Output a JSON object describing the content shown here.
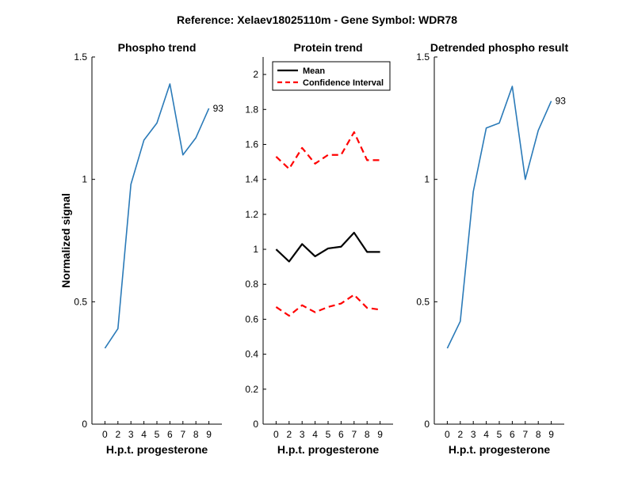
{
  "figure_title": "Reference:  Xelaev18025110m - Gene Symbol:  WDR78",
  "colors": {
    "phospho_line": "#2a7ab8",
    "mean_line": "#000000",
    "ci_line": "#ff0000",
    "axis": "#000000"
  },
  "chart_data": [
    {
      "type": "line",
      "title": "Phospho trend",
      "xlabel": "H.p.t. progesterone",
      "ylabel": "Normalized signal",
      "categories": [
        "0",
        "2",
        "3",
        "4",
        "5",
        "6",
        "7",
        "8",
        "9"
      ],
      "ylim": [
        0,
        1.5
      ],
      "yticks": [
        "0",
        "0.5",
        "1",
        "1.5"
      ],
      "grid": false,
      "series": [
        {
          "values": [
            0.31,
            0.39,
            0.98,
            1.16,
            1.23,
            1.39,
            1.1,
            1.17,
            1.29
          ],
          "end_label": "93"
        }
      ]
    },
    {
      "type": "line",
      "title": "Protein trend",
      "xlabel": "H.p.t. progesterone",
      "categories": [
        "0",
        "2",
        "3",
        "4",
        "5",
        "6",
        "7",
        "8",
        "9"
      ],
      "ylim": [
        0,
        2.1
      ],
      "yticks": [
        "0",
        "0.2",
        "0.4",
        "0.6",
        "0.8",
        "1",
        "1.2",
        "1.4",
        "1.6",
        "1.8",
        "2"
      ],
      "grid": false,
      "legend": {
        "placement": "top-left",
        "entries": [
          "Mean",
          "Confidence Interval"
        ]
      },
      "series": [
        {
          "name": "Mean",
          "style": "solid",
          "values": [
            1.0,
            0.93,
            1.03,
            0.96,
            1.005,
            1.015,
            1.095,
            0.985,
            0.985
          ]
        },
        {
          "name": "Confidence Interval",
          "style": "dashed",
          "values": [
            1.53,
            1.46,
            1.58,
            1.49,
            1.54,
            1.54,
            1.67,
            1.51,
            1.51
          ]
        },
        {
          "name": "Confidence Interval",
          "style": "dashed",
          "legend": false,
          "values": [
            0.67,
            0.62,
            0.68,
            0.64,
            0.67,
            0.69,
            0.74,
            0.665,
            0.655
          ]
        }
      ]
    },
    {
      "type": "line",
      "title": "Detrended phospho result",
      "xlabel": "H.p.t. progesterone",
      "categories": [
        "0",
        "2",
        "3",
        "4",
        "5",
        "6",
        "7",
        "8",
        "9"
      ],
      "ylim": [
        0,
        1.5
      ],
      "yticks": [
        "0",
        "0.5",
        "1",
        "1.5"
      ],
      "grid": false,
      "series": [
        {
          "values": [
            0.31,
            0.42,
            0.95,
            1.21,
            1.23,
            1.38,
            1.0,
            1.2,
            1.32
          ],
          "end_label": "93"
        }
      ]
    }
  ]
}
